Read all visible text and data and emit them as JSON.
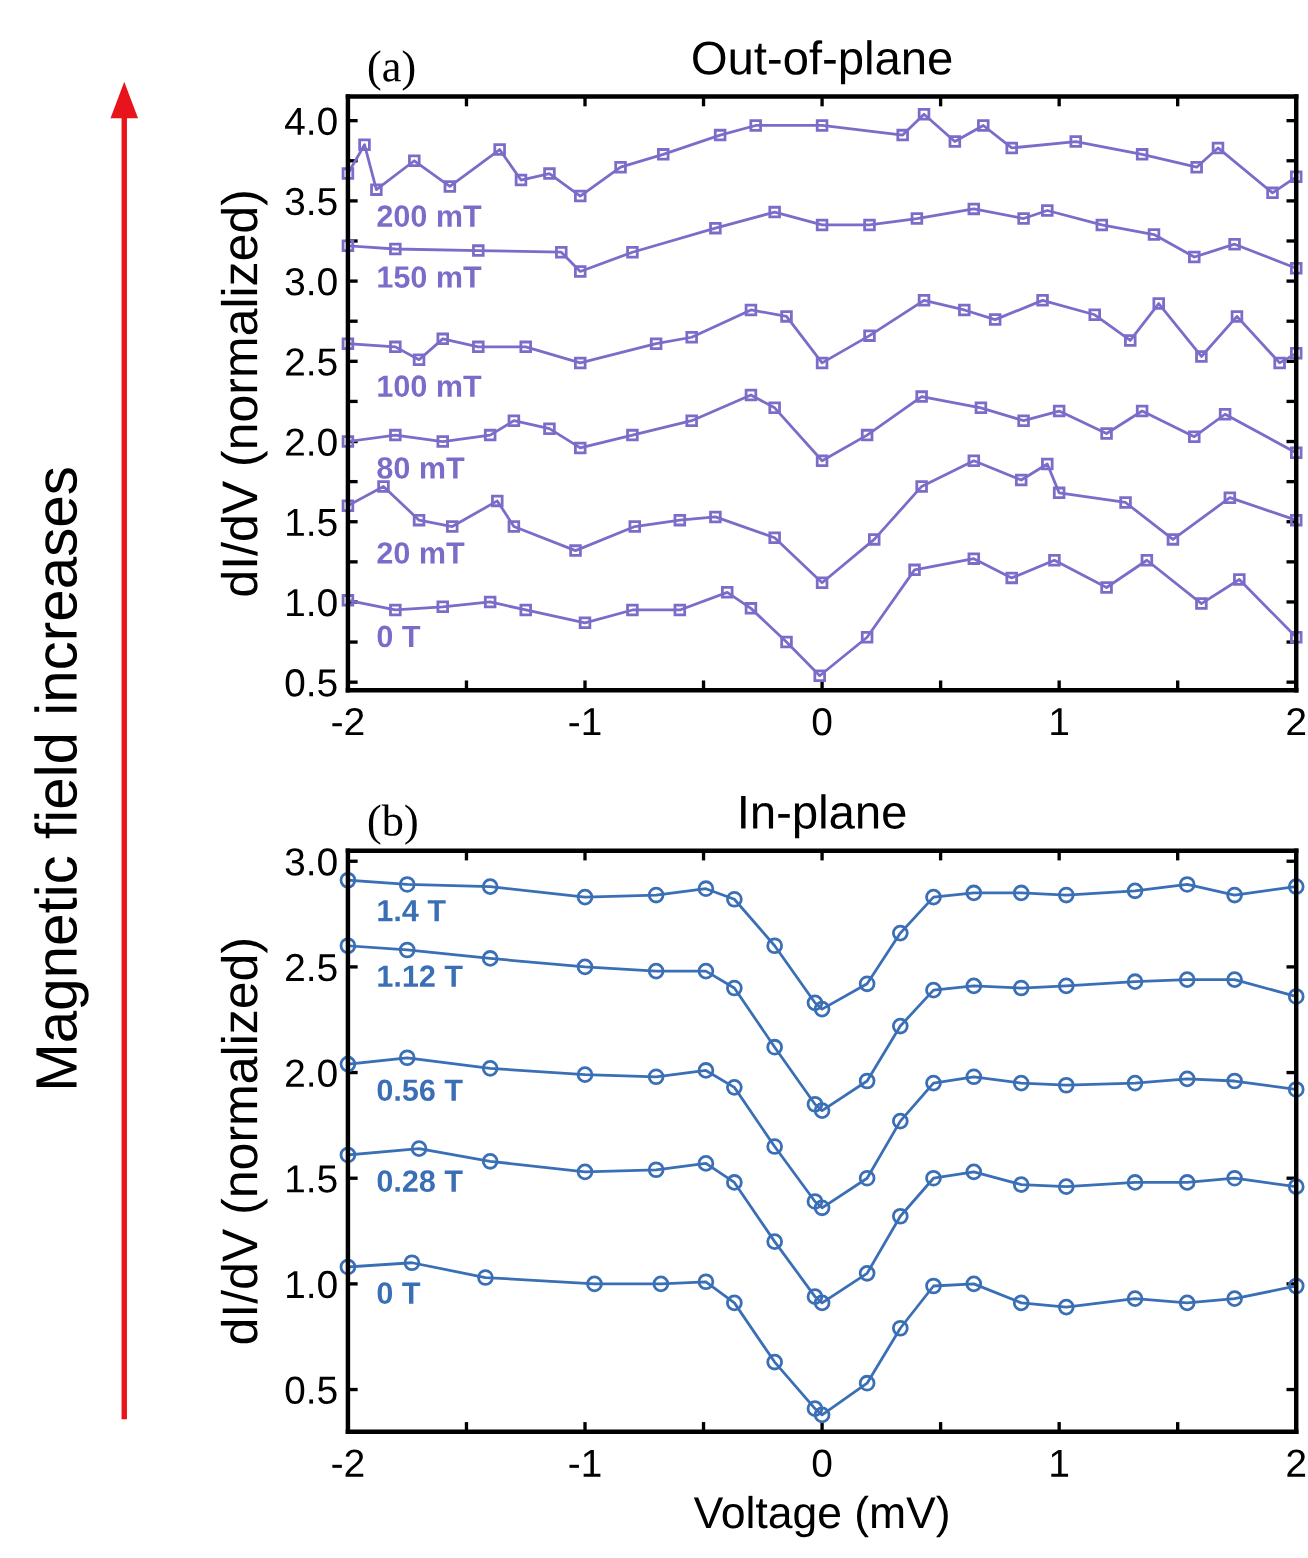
{
  "chart_data": [
    {
      "type": "line",
      "title": "Out-of-plane",
      "ylabel": "dI/dV (normalized)",
      "annotations": [
        "(a)",
        "Magnetic field increases"
      ],
      "marker": "square",
      "line_style": "solid",
      "xlim": [
        -2,
        2
      ],
      "ylim": [
        0.45,
        4.15
      ],
      "xticks": [
        -2,
        {
          "value": -1.5,
          "label": null
        },
        -1,
        {
          "value": -0.5,
          "label": null
        },
        0,
        {
          "value": 0.5,
          "label": null
        },
        1,
        {
          "value": 1.5,
          "label": null
        },
        2
      ],
      "yticks": [
        0.5,
        {
          "value": 0.75,
          "label": null
        },
        {
          "value": 1,
          "label": "1.0"
        },
        {
          "value": 1.25,
          "label": null
        },
        1.5,
        {
          "value": 1.75,
          "label": null
        },
        {
          "value": 2,
          "label": "2.0"
        },
        {
          "value": 2.25,
          "label": null
        },
        2.5,
        {
          "value": 2.75,
          "label": null
        },
        {
          "value": 3,
          "label": "3.0"
        },
        {
          "value": 3.25,
          "label": null
        },
        3.5,
        {
          "value": 3.75,
          "label": null
        },
        {
          "value": 4,
          "label": "4.0"
        }
      ],
      "grid": false,
      "legend": false,
      "series": [
        {
          "name": "0 T",
          "color": "#7b6cc9",
          "x": [
            -2,
            -1.8,
            -1.6,
            -1.4,
            -1.25,
            -1.0,
            -0.8,
            -0.6,
            -0.4,
            -0.3,
            -0.15,
            -0.01,
            0.19,
            0.39,
            0.64,
            0.8,
            0.98,
            1.2,
            1.37,
            1.6,
            1.76,
            2.0
          ],
          "values": [
            1.01,
            0.95,
            0.97,
            1.0,
            0.95,
            0.87,
            0.95,
            0.95,
            1.06,
            0.96,
            0.75,
            0.54,
            0.78,
            1.2,
            1.27,
            1.15,
            1.26,
            1.09,
            1.26,
            0.99,
            1.14,
            0.78
          ]
        },
        {
          "name": "20 mT",
          "color": "#7b6cc9",
          "x": [
            -2,
            -1.85,
            -1.7,
            -1.56,
            -1.37,
            -1.3,
            -1.04,
            -0.79,
            -0.6,
            -0.45,
            -0.2,
            0.0,
            0.22,
            0.42,
            0.64,
            0.84,
            0.95,
            1.0,
            1.28,
            1.48,
            1.72,
            2.0
          ],
          "values": [
            1.6,
            1.72,
            1.51,
            1.47,
            1.63,
            1.47,
            1.32,
            1.47,
            1.51,
            1.53,
            1.4,
            1.12,
            1.39,
            1.72,
            1.88,
            1.76,
            1.86,
            1.68,
            1.62,
            1.39,
            1.65,
            1.51
          ]
        },
        {
          "name": "80 mT",
          "color": "#7b6cc9",
          "x": [
            -2,
            -1.8,
            -1.6,
            -1.4,
            -1.3,
            -1.15,
            -1.02,
            -0.8,
            -0.55,
            -0.3,
            -0.2,
            0.0,
            0.19,
            0.42,
            0.67,
            0.85,
            1.0,
            1.2,
            1.35,
            1.57,
            1.7,
            2.0
          ],
          "values": [
            2.0,
            2.04,
            2.0,
            2.04,
            2.13,
            2.08,
            1.96,
            2.04,
            2.13,
            2.29,
            2.21,
            1.88,
            2.04,
            2.28,
            2.21,
            2.13,
            2.19,
            2.05,
            2.19,
            2.03,
            2.17,
            1.93
          ]
        },
        {
          "name": "100 mT",
          "color": "#7b6cc9",
          "x": [
            -2,
            -1.8,
            -1.7,
            -1.6,
            -1.45,
            -1.25,
            -1.02,
            -0.7,
            -0.55,
            -0.3,
            -0.15,
            0.0,
            0.2,
            0.43,
            0.6,
            0.73,
            0.93,
            1.15,
            1.3,
            1.42,
            1.6,
            1.75,
            1.93,
            2.0
          ],
          "values": [
            2.61,
            2.59,
            2.51,
            2.64,
            2.59,
            2.59,
            2.49,
            2.61,
            2.65,
            2.82,
            2.78,
            2.49,
            2.66,
            2.88,
            2.82,
            2.76,
            2.88,
            2.79,
            2.63,
            2.86,
            2.53,
            2.78,
            2.49,
            2.55
          ]
        },
        {
          "name": "150 mT",
          "color": "#7b6cc9",
          "x": [
            -2,
            -1.8,
            -1.45,
            -1.1,
            -1.02,
            -0.8,
            -0.45,
            -0.2,
            0.0,
            0.2,
            0.4,
            0.64,
            0.85,
            0.95,
            1.18,
            1.4,
            1.57,
            1.74,
            2.0
          ],
          "values": [
            3.22,
            3.2,
            3.19,
            3.18,
            3.06,
            3.18,
            3.33,
            3.43,
            3.35,
            3.35,
            3.39,
            3.45,
            3.39,
            3.44,
            3.35,
            3.29,
            3.15,
            3.23,
            3.08
          ]
        },
        {
          "name": "200 mT",
          "color": "#7b6cc9",
          "x": [
            -2,
            -1.93,
            -1.88,
            -1.72,
            -1.57,
            -1.36,
            -1.27,
            -1.15,
            -1.02,
            -0.85,
            -0.67,
            -0.43,
            -0.28,
            0.0,
            0.34,
            0.43,
            0.56,
            0.68,
            0.8,
            1.07,
            1.35,
            1.58,
            1.67,
            1.9,
            2.0
          ],
          "values": [
            3.67,
            3.85,
            3.57,
            3.75,
            3.59,
            3.82,
            3.63,
            3.67,
            3.53,
            3.71,
            3.79,
            3.91,
            3.97,
            3.97,
            3.91,
            4.04,
            3.87,
            3.97,
            3.83,
            3.87,
            3.79,
            3.71,
            3.83,
            3.55,
            3.65
          ]
        }
      ]
    },
    {
      "type": "line",
      "title": "In-plane",
      "xlabel": "Voltage (mV)",
      "ylabel": "dI/dV (normalized)",
      "annotations": [
        "(b)"
      ],
      "marker": "circle",
      "line_style": "solid",
      "xlim": [
        -2,
        2
      ],
      "ylim": [
        0.3,
        3.05
      ],
      "xticks": [
        -2,
        {
          "value": -1.5,
          "label": null
        },
        -1,
        {
          "value": -0.5,
          "label": null
        },
        0,
        {
          "value": 0.5,
          "label": null
        },
        1,
        {
          "value": 1.5,
          "label": null
        },
        2
      ],
      "yticks": [
        0.5,
        {
          "value": 1,
          "label": "1.0"
        },
        1.5,
        {
          "value": 2,
          "label": "2.0"
        },
        2.5,
        {
          "value": 3,
          "label": "3.0"
        }
      ],
      "grid": false,
      "legend": false,
      "series": [
        {
          "name": "0 T",
          "color": "#3a6fb5",
          "x": [
            -2,
            -1.73,
            -1.42,
            -0.96,
            -0.68,
            -0.49,
            -0.37,
            -0.2,
            -0.03,
            0.0,
            0.19,
            0.33,
            0.47,
            0.64,
            0.84,
            1.03,
            1.32,
            1.54,
            1.74,
            2.0
          ],
          "values": [
            1.08,
            1.1,
            1.03,
            1.0,
            1.0,
            1.01,
            0.91,
            0.63,
            0.41,
            0.38,
            0.53,
            0.79,
            0.99,
            1.0,
            0.91,
            0.89,
            0.93,
            0.91,
            0.93,
            0.99
          ]
        },
        {
          "name": "0.28 T",
          "color": "#3a6fb5",
          "x": [
            -2,
            -1.7,
            -1.4,
            -1.0,
            -0.7,
            -0.49,
            -0.37,
            -0.2,
            -0.03,
            0.0,
            0.19,
            0.33,
            0.47,
            0.64,
            0.84,
            1.03,
            1.32,
            1.54,
            1.74,
            2.0
          ],
          "values": [
            1.61,
            1.64,
            1.58,
            1.53,
            1.54,
            1.57,
            1.48,
            1.2,
            0.94,
            0.91,
            1.05,
            1.32,
            1.5,
            1.53,
            1.47,
            1.46,
            1.48,
            1.48,
            1.5,
            1.46
          ]
        },
        {
          "name": "0.56 T",
          "color": "#3a6fb5",
          "x": [
            -2,
            -1.75,
            -1.4,
            -1.0,
            -0.7,
            -0.49,
            -0.37,
            -0.2,
            -0.03,
            0.0,
            0.19,
            0.33,
            0.47,
            0.64,
            0.84,
            1.03,
            1.32,
            1.54,
            1.74,
            2.0
          ],
          "values": [
            2.04,
            2.07,
            2.02,
            1.99,
            1.98,
            2.01,
            1.93,
            1.65,
            1.39,
            1.36,
            1.5,
            1.77,
            1.95,
            1.98,
            1.95,
            1.94,
            1.95,
            1.97,
            1.96,
            1.92
          ]
        },
        {
          "name": "1.12 T",
          "color": "#3a6fb5",
          "x": [
            -2,
            -1.75,
            -1.4,
            -1.0,
            -0.7,
            -0.49,
            -0.37,
            -0.2,
            -0.03,
            0.0,
            0.19,
            0.33,
            0.47,
            0.64,
            0.84,
            1.03,
            1.32,
            1.54,
            1.74,
            2.0
          ],
          "values": [
            2.6,
            2.58,
            2.54,
            2.5,
            2.48,
            2.48,
            2.4,
            2.12,
            1.85,
            1.82,
            1.96,
            2.22,
            2.39,
            2.41,
            2.4,
            2.41,
            2.43,
            2.44,
            2.44,
            2.36
          ]
        },
        {
          "name": "1.4 T",
          "color": "#3a6fb5",
          "x": [
            -2,
            -1.75,
            -1.4,
            -1.0,
            -0.7,
            -0.49,
            -0.37,
            -0.2,
            -0.03,
            0.0,
            0.19,
            0.33,
            0.47,
            0.64,
            0.84,
            1.03,
            1.32,
            1.54,
            1.74,
            2.0
          ],
          "values": [
            2.91,
            2.89,
            2.88,
            2.83,
            2.84,
            2.87,
            2.82,
            2.6,
            2.33,
            2.3,
            2.42,
            2.66,
            2.83,
            2.85,
            2.85,
            2.84,
            2.86,
            2.89,
            2.84,
            2.88
          ]
        }
      ]
    }
  ]
}
